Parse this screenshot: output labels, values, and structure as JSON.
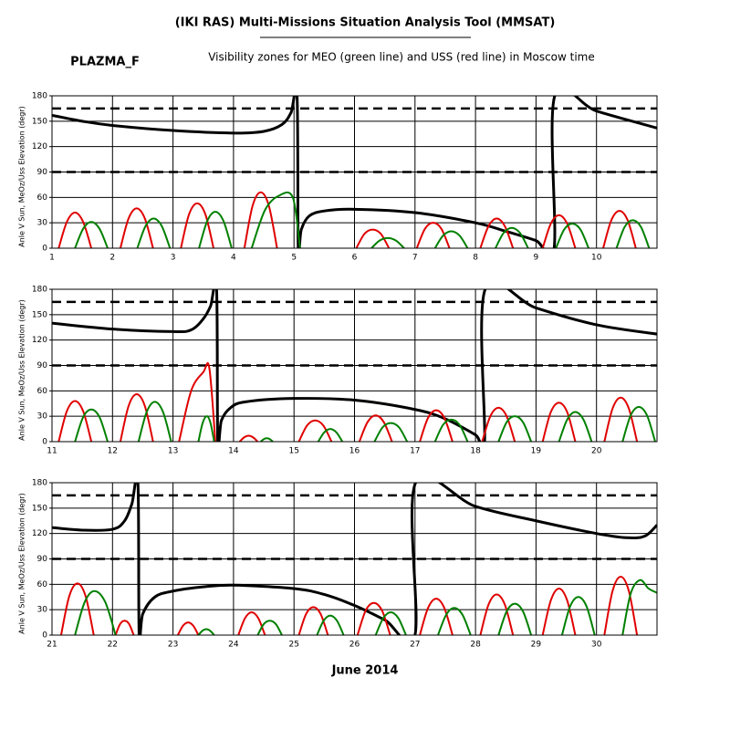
{
  "title": "(IKI RAS) Multi-Missions Situation Analysis Tool (MMSAT)",
  "label": "PLAZMA_F",
  "subtitle": "Visibility zones for MEO (green line) and USS (red line) in Moscow time",
  "xlabel": "June 2014",
  "chart_data": [
    {
      "type": "line",
      "ylabel": "Anle V Sun, MeOz/Uss Elevation (degr)",
      "xlim": [
        1,
        11
      ],
      "xticks": [
        1,
        2,
        3,
        4,
        5,
        6,
        7,
        8,
        9,
        10
      ],
      "ylim": [
        0,
        180
      ],
      "yticks": [
        0,
        30,
        60,
        90,
        120,
        150,
        180
      ],
      "grid": true,
      "hlines": [
        90,
        165
      ],
      "series": [
        {
          "color": "#000000",
          "width": 3,
          "x": [
            1,
            1.5,
            2,
            3,
            4,
            4.5,
            4.8,
            4.95,
            5.05,
            5.07,
            5.12,
            5.25,
            5.5,
            6,
            7,
            8,
            8.5,
            9,
            9.3,
            9.31,
            10,
            11
          ],
          "values": [
            157,
            150,
            145,
            139,
            136,
            138,
            146,
            160,
            180,
            0,
            22,
            38,
            44,
            46,
            42,
            30,
            20,
            9,
            0,
            180,
            162,
            142
          ]
        },
        {
          "color": "#e00000",
          "width": 2,
          "x": [
            1.11,
            1.245,
            1.38,
            1.515,
            1.65,
            null,
            2.13,
            2.265,
            2.4,
            2.535,
            2.67,
            null,
            3.13,
            3.265,
            3.4,
            3.535,
            3.67,
            null,
            4.18,
            4.315,
            4.45,
            4.585,
            4.72,
            null,
            6.03,
            6.165,
            6.3,
            6.435,
            6.57,
            null,
            7.03,
            7.165,
            7.3,
            7.435,
            7.57,
            null,
            8.08,
            8.215,
            8.35,
            8.485,
            8.62,
            null,
            9.11,
            9.245,
            9.38,
            9.515,
            9.65,
            null,
            10.11,
            10.245,
            10.38,
            10.515,
            10.65
          ],
          "values": [
            0,
            31,
            42,
            31,
            0,
            null,
            0,
            35,
            47,
            35,
            0,
            null,
            0,
            40,
            53,
            40,
            0,
            null,
            0,
            50,
            66,
            50,
            0,
            null,
            0,
            17,
            22,
            17,
            0,
            null,
            0,
            23,
            30,
            23,
            0,
            null,
            0,
            26,
            35,
            26,
            0,
            null,
            0,
            29,
            39,
            29,
            0,
            null,
            0,
            33,
            44,
            33,
            0
          ]
        },
        {
          "color": "#008000",
          "width": 2,
          "x": [
            1.38,
            1.515,
            1.65,
            1.785,
            1.92,
            null,
            2.41,
            2.545,
            2.68,
            2.815,
            2.95,
            null,
            3.43,
            3.565,
            3.7,
            3.835,
            3.97,
            null,
            4.3,
            4.52,
            4.75,
            4.98,
            5.1,
            null,
            6.28,
            6.415,
            6.55,
            6.685,
            6.82,
            null,
            7.33,
            7.465,
            7.6,
            7.735,
            7.87,
            null,
            8.33,
            8.465,
            8.6,
            8.735,
            8.87,
            null,
            9.33,
            9.465,
            9.6,
            9.735,
            9.87,
            null,
            10.33,
            10.465,
            10.6,
            10.735,
            10.87
          ],
          "values": [
            0,
            23,
            31,
            23,
            0,
            null,
            0,
            26,
            35,
            26,
            0,
            null,
            0,
            32,
            43,
            32,
            0,
            null,
            0,
            45,
            62,
            60,
            0,
            null,
            0,
            9,
            12,
            9,
            0,
            null,
            0,
            15,
            20,
            15,
            0,
            null,
            0,
            18,
            24,
            18,
            0,
            null,
            0,
            22,
            29,
            22,
            0,
            null,
            0,
            25,
            33,
            25,
            0
          ]
        }
      ]
    },
    {
      "type": "line",
      "ylabel": "Anle V Sun, MeOz/Uss Elevation (degr)",
      "xlim": [
        11,
        21
      ],
      "xticks": [
        11,
        12,
        13,
        14,
        15,
        16,
        17,
        18,
        19,
        20
      ],
      "ylim": [
        0,
        180
      ],
      "yticks": [
        0,
        30,
        60,
        90,
        120,
        150,
        180
      ],
      "grid": true,
      "hlines": [
        90,
        165
      ],
      "series": [
        {
          "color": "#000000",
          "width": 3,
          "x": [
            11,
            12,
            13,
            13.3,
            13.5,
            13.62,
            13.72,
            13.74,
            13.8,
            13.95,
            14.2,
            15,
            16,
            17,
            17.5,
            18,
            18.15,
            18.16,
            19,
            20,
            21
          ],
          "values": [
            140,
            133,
            130,
            132,
            145,
            160,
            180,
            0,
            25,
            40,
            47,
            51,
            49,
            38,
            27,
            8,
            0,
            180,
            158,
            138,
            127
          ]
        },
        {
          "color": "#e00000",
          "width": 2,
          "x": [
            11.11,
            11.245,
            11.38,
            11.515,
            11.65,
            null,
            12.13,
            12.265,
            12.4,
            12.535,
            12.67,
            null,
            13.1,
            13.3,
            13.5,
            13.6,
            13.7,
            null,
            14.1,
            14.175,
            14.25,
            14.325,
            14.4,
            null,
            15.08,
            15.215,
            15.35,
            15.485,
            15.62,
            null,
            16.08,
            16.215,
            16.35,
            16.485,
            16.62,
            null,
            17.08,
            17.215,
            17.35,
            17.485,
            17.62,
            null,
            18.11,
            18.245,
            18.38,
            18.515,
            18.65,
            null,
            19.11,
            19.245,
            19.38,
            19.515,
            19.65,
            null,
            20.13,
            20.265,
            20.4,
            20.535,
            20.67
          ],
          "values": [
            0,
            36,
            48,
            36,
            0,
            null,
            0,
            42,
            56,
            42,
            0,
            null,
            0,
            60,
            82,
            87,
            0,
            null,
            0,
            5,
            7,
            5,
            0,
            null,
            0,
            19,
            25,
            19,
            0,
            null,
            0,
            23,
            31,
            23,
            0,
            null,
            0,
            28,
            37,
            28,
            0,
            null,
            0,
            30,
            40,
            30,
            0,
            null,
            0,
            35,
            46,
            35,
            0,
            null,
            0,
            39,
            52,
            39,
            0
          ]
        },
        {
          "color": "#008000",
          "width": 2,
          "x": [
            11.38,
            11.515,
            11.65,
            11.785,
            11.92,
            null,
            12.43,
            12.565,
            12.7,
            12.835,
            12.97,
            null,
            13.42,
            13.49,
            13.56,
            13.62,
            13.68,
            null,
            14.45,
            14.5,
            14.55,
            14.6,
            14.65,
            null,
            15.4,
            15.5,
            15.6,
            15.7,
            15.8,
            null,
            16.33,
            16.465,
            16.6,
            16.735,
            16.87,
            null,
            17.33,
            17.465,
            17.6,
            17.735,
            17.87,
            null,
            18.38,
            18.515,
            18.65,
            18.785,
            18.92,
            null,
            19.38,
            19.515,
            19.65,
            19.785,
            19.92,
            null,
            20.43,
            20.565,
            20.7,
            20.835,
            20.97
          ],
          "values": [
            0,
            29,
            38,
            29,
            0,
            null,
            0,
            35,
            47,
            35,
            0,
            null,
            0,
            22,
            30,
            22,
            0,
            null,
            0,
            3,
            4,
            3,
            0,
            null,
            0,
            11,
            15,
            11,
            0,
            null,
            0,
            17,
            22,
            17,
            0,
            null,
            0,
            20,
            26,
            20,
            0,
            null,
            0,
            23,
            30,
            23,
            0,
            null,
            0,
            26,
            35,
            26,
            0,
            null,
            0,
            31,
            41,
            31,
            0
          ]
        }
      ]
    },
    {
      "type": "line",
      "ylabel": "Anle V Sun, MeOz/Uss Elevation (degr)",
      "xlim": [
        21,
        31
      ],
      "xticks": [
        21,
        22,
        23,
        24,
        25,
        26,
        27,
        28,
        29,
        30
      ],
      "ylim": [
        0,
        180
      ],
      "yticks": [
        0,
        30,
        60,
        90,
        120,
        150,
        180
      ],
      "grid": true,
      "hlines": [
        90,
        165
      ],
      "series": [
        {
          "color": "#000000",
          "width": 3,
          "x": [
            21,
            21.5,
            22,
            22.2,
            22.32,
            22.42,
            22.44,
            22.5,
            22.7,
            23,
            23.5,
            24,
            25,
            25.5,
            26,
            26.5,
            27,
            27.01,
            28,
            29,
            30,
            30.5,
            30.8,
            31
          ],
          "values": [
            127,
            124,
            125,
            135,
            155,
            180,
            0,
            25,
            45,
            52,
            57,
            59,
            55,
            48,
            35,
            18,
            0,
            180,
            152,
            135,
            120,
            115,
            117,
            130
          ]
        },
        {
          "color": "#e00000",
          "width": 2,
          "x": [
            21.15,
            21.285,
            21.42,
            21.555,
            21.69,
            null,
            22.05,
            22.125,
            22.2,
            22.275,
            22.35,
            null,
            23.08,
            23.165,
            23.25,
            23.335,
            23.42,
            null,
            24.08,
            24.19,
            24.3,
            24.41,
            24.52,
            null,
            25.08,
            25.2,
            25.32,
            25.44,
            25.56,
            null,
            26.05,
            26.185,
            26.32,
            26.455,
            26.59,
            null,
            27.08,
            27.215,
            27.35,
            27.485,
            27.62,
            null,
            28.08,
            28.215,
            28.35,
            28.485,
            28.62,
            null,
            29.11,
            29.245,
            29.38,
            29.515,
            29.65,
            null,
            30.13,
            30.265,
            30.4,
            30.535,
            30.67
          ],
          "values": [
            0,
            46,
            61,
            46,
            0,
            null,
            0,
            13,
            17,
            13,
            0,
            null,
            0,
            11,
            15,
            11,
            0,
            null,
            0,
            20,
            27,
            20,
            0,
            null,
            0,
            25,
            33,
            25,
            0,
            null,
            0,
            29,
            38,
            29,
            0,
            null,
            0,
            32,
            43,
            32,
            0,
            null,
            0,
            36,
            48,
            36,
            0,
            null,
            0,
            41,
            55,
            41,
            0,
            null,
            0,
            52,
            69,
            52,
            0
          ]
        },
        {
          "color": "#008000",
          "width": 2,
          "x": [
            21.38,
            21.54,
            21.7,
            21.88,
            22.05,
            null,
            23.42,
            23.485,
            23.55,
            23.615,
            23.68,
            null,
            24.4,
            24.5,
            24.6,
            24.7,
            24.8,
            null,
            25.38,
            25.49,
            25.6,
            25.71,
            25.82,
            null,
            26.35,
            26.475,
            26.6,
            26.725,
            26.85,
            null,
            27.38,
            27.515,
            27.65,
            27.785,
            27.92,
            null,
            28.38,
            28.515,
            28.65,
            28.785,
            28.92,
            null,
            29.43,
            29.565,
            29.7,
            29.835,
            29.97,
            null,
            30.43,
            30.565,
            30.72,
            30.86,
            31
          ],
          "values": [
            0,
            39,
            52,
            39,
            0,
            null,
            0,
            5,
            7,
            5,
            0,
            null,
            0,
            13,
            17,
            13,
            0,
            null,
            0,
            17,
            23,
            17,
            0,
            null,
            0,
            20,
            27,
            20,
            0,
            null,
            0,
            24,
            32,
            24,
            0,
            null,
            0,
            28,
            37,
            28,
            0,
            null,
            0,
            34,
            45,
            34,
            0,
            null,
            0,
            49,
            65,
            55,
            50
          ]
        }
      ]
    }
  ]
}
